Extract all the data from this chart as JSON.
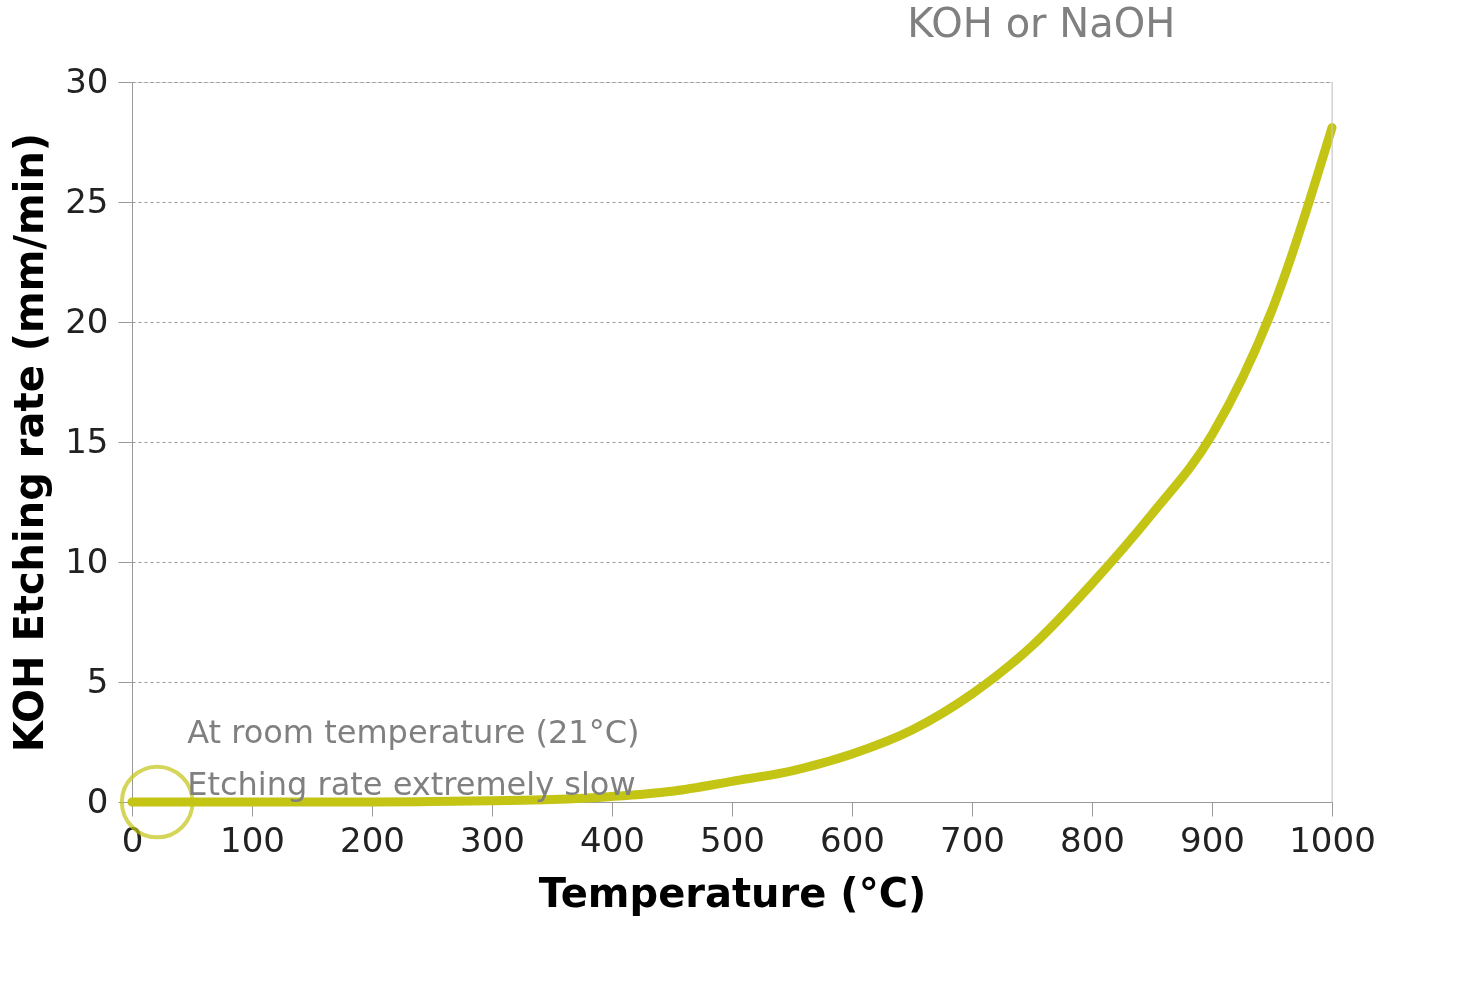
{
  "chart_data": {
    "type": "line",
    "title": "KOH or NaOH",
    "xlabel": "Temperature (°C)",
    "ylabel": "KOH Etching rate (mm/min)",
    "x": [
      0,
      50,
      100,
      150,
      200,
      250,
      300,
      350,
      400,
      450,
      500,
      550,
      600,
      650,
      700,
      750,
      800,
      850,
      900,
      950,
      1000
    ],
    "series": [
      {
        "color": "#c3c414",
        "values": [
          0,
          0,
          0,
          0,
          0,
          0.02,
          0.05,
          0.1,
          0.23,
          0.45,
          0.86,
          1.3,
          2.0,
          3.0,
          4.5,
          6.5,
          9.1,
          12.0,
          15.3,
          20.5,
          28.1
        ]
      }
    ],
    "xlim": [
      0,
      1000
    ],
    "xticks": [
      0,
      100,
      200,
      300,
      400,
      500,
      600,
      700,
      800,
      900,
      1000
    ],
    "ylim": [
      0,
      30
    ],
    "yticks": [
      0,
      5,
      10,
      15,
      20,
      25,
      30
    ],
    "grid": "y",
    "line_style": "solid",
    "annotations": [
      {
        "text": "At room temperature (21°C)\nEtching rate extremely slow",
        "x": 21,
        "y": 0
      }
    ]
  }
}
